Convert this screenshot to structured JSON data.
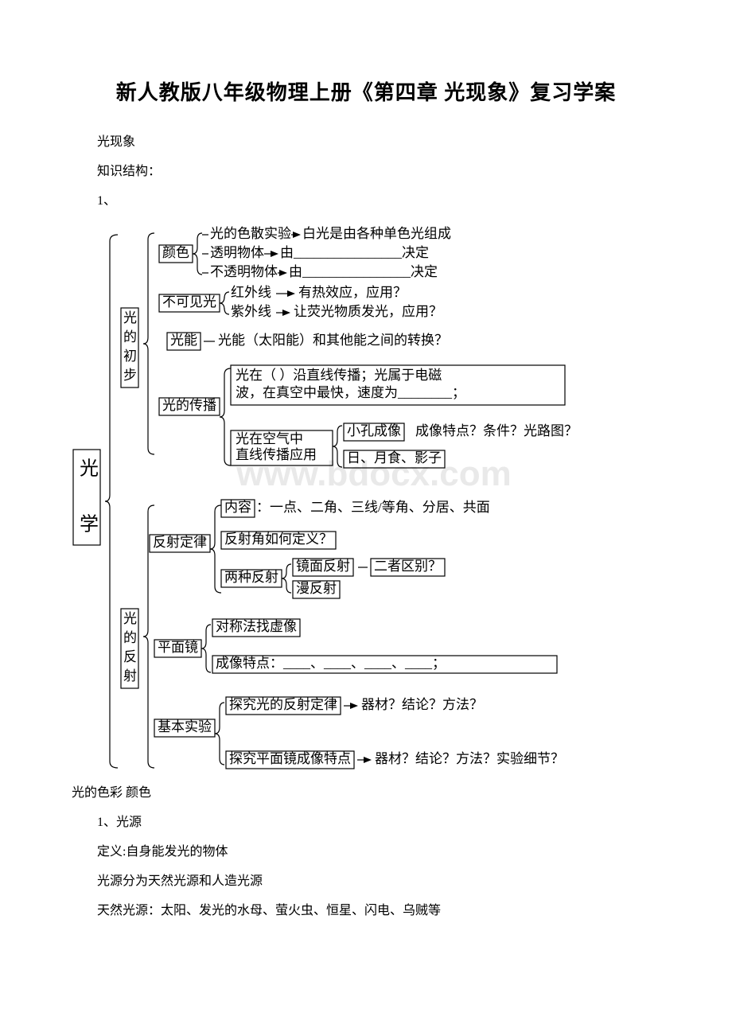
{
  "title": "新人教版八年级物理上册《第四章 光现象》复习学案",
  "intro": {
    "line1": "光现象",
    "line2": "知识结构：",
    "line3": "1、"
  },
  "diagram": {
    "watermark": "www.bdocx.com",
    "root": {
      "l1": "光",
      "l2": "学"
    },
    "sec1": {
      "l1": "光",
      "l2": "的",
      "l3": "初",
      "l4": "步"
    },
    "sec2": {
      "l1": "光",
      "l2": "的",
      "l3": "反",
      "l4": "射"
    },
    "color": {
      "label": "颜色",
      "a": "光的色散实验",
      "a2": "白光是由各种单色光组成",
      "b": "透明物体",
      "b2": "由________________决定",
      "c": "不透明物体",
      "c2": "由________________决定"
    },
    "invisible": {
      "label": "不可见光",
      "a": "红外线",
      "a2": "有热效应，应用？",
      "b": "紫外线",
      "b2": "让荧光物质发光，应用？"
    },
    "energy": {
      "label": "光能",
      "a": "光能（太阳能）和其他能之间的转换？"
    },
    "propagate": {
      "label": "光的传播",
      "a1": "光在（          ）沿直线传播；光属于电磁",
      "a2": "波，在真空中最快，速度为________；",
      "b_label": "光在空气中\n直线传播应用",
      "b1": "小孔成像",
      "b1_2": "成像特点？条件？光路图？",
      "b2": "日、月食、影子"
    },
    "reflect_law": {
      "label": "反射定律",
      "a": "内容",
      "a2": "：一点、二角、三线/等角、分居、共面",
      "b": "反射角如何定义？",
      "c_label": "两种反射",
      "c1": "镜面反射",
      "c2": "漫反射",
      "c_right": "二者区别？"
    },
    "mirror": {
      "label": "平面镜",
      "a": "对称法找虚像",
      "b": "成像特点：____、____、____、____；"
    },
    "experiment": {
      "label": "基本实验",
      "a": "探究光的反射定律",
      "a2": "器材？结论？方法？",
      "b": "探究平面镜成像特点",
      "b2": "器材？结论？方法？实验细节？"
    }
  },
  "after": {
    "line1": "光的色彩 颜色",
    "line2": "1、光源",
    "line3": "定义:自身能发光的物体",
    "line4": "光源分为天然光源和人造光源",
    "line5": "天然光源：太阳、发光的水母、萤火虫、恒星、闪电、乌贼等"
  },
  "colors": {
    "text": "#000000",
    "line": "#000000",
    "bg": "#ffffff",
    "wm": "#e9e9e9"
  }
}
